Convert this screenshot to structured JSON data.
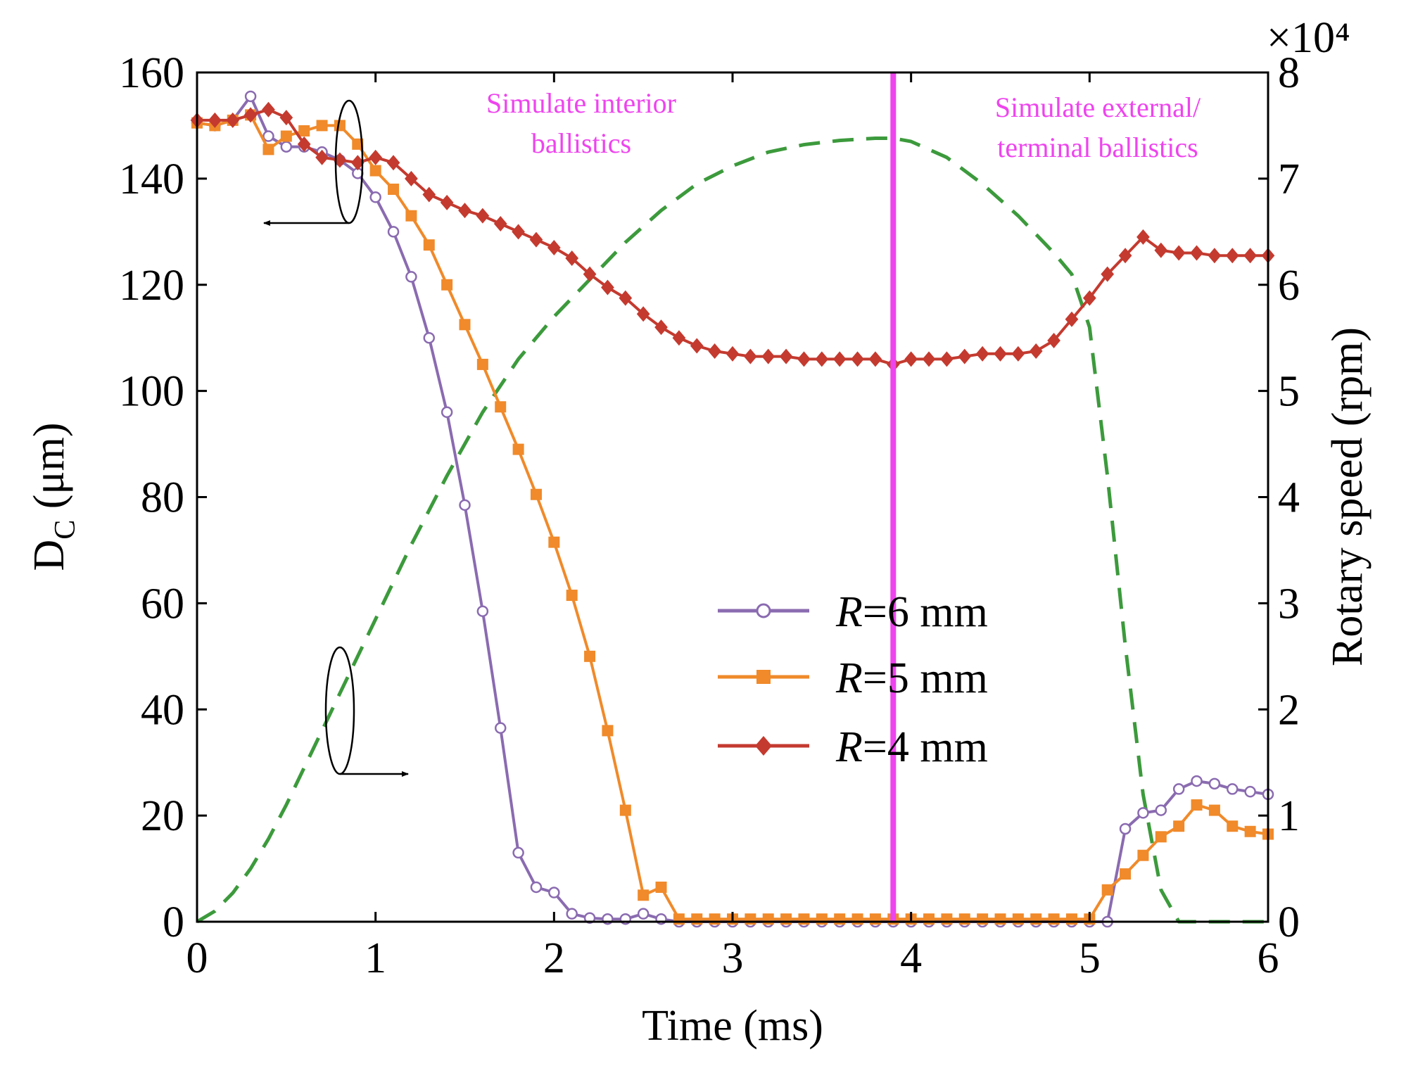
{
  "chart_data": {
    "type": "line",
    "xlabel": "Time (ms)",
    "ylabel": "D",
    "ylabel_sub": "C",
    "ylabel_unit": " (μm)",
    "y2label": "Rotary speed (rpm)",
    "y2_multiplier": "×10⁴",
    "xlim": [
      0,
      6
    ],
    "ylim": [
      0,
      160
    ],
    "y2lim": [
      0,
      8
    ],
    "x_ticks": [
      "0",
      "1",
      "2",
      "3",
      "4",
      "5",
      "6"
    ],
    "y_ticks": [
      "0",
      "20",
      "40",
      "60",
      "80",
      "100",
      "120",
      "140",
      "160"
    ],
    "y2_ticks": [
      "0",
      "1",
      "2",
      "3",
      "4",
      "5",
      "6",
      "7",
      "8"
    ],
    "vline": {
      "x": 3.9,
      "color": "#ee44ee"
    },
    "annotations": {
      "interior_line1": "Simulate interior",
      "interior_line2": "ballistics",
      "external_line1": "Simulate external/",
      "external_line2": "terminal ballistics"
    },
    "series": [
      {
        "name": "R=6 mm",
        "label_italic": "R",
        "label_rest": "=6 mm",
        "color": "#8a6bb0",
        "marker": "circle",
        "x": [
          0,
          0.1,
          0.2,
          0.3,
          0.4,
          0.5,
          0.6,
          0.7,
          0.8,
          0.9,
          1.0,
          1.1,
          1.2,
          1.3,
          1.4,
          1.5,
          1.6,
          1.7,
          1.8,
          1.9,
          2.0,
          2.1,
          2.2,
          2.3,
          2.4,
          2.5,
          2.6,
          2.7,
          2.8,
          2.9,
          3.0,
          3.1,
          3.2,
          3.3,
          3.4,
          3.5,
          3.6,
          3.7,
          3.8,
          3.9,
          4.0,
          4.1,
          4.2,
          4.3,
          4.4,
          4.5,
          4.6,
          4.7,
          4.8,
          4.9,
          5.0,
          5.1,
          5.2,
          5.3,
          5.4,
          5.5,
          5.6,
          5.7,
          5.8,
          5.9,
          6.0
        ],
        "values": [
          150.5,
          150,
          151,
          155.5,
          148,
          146,
          146,
          145,
          143.5,
          141,
          136.5,
          130,
          121.5,
          110,
          96,
          78.5,
          58.5,
          36.5,
          13,
          6.5,
          5.5,
          1.5,
          0.7,
          0.5,
          0.5,
          1.5,
          0.5,
          0,
          0,
          0,
          0,
          0,
          0,
          0,
          0,
          0,
          0,
          0,
          0,
          0,
          0,
          0,
          0,
          0,
          0,
          0,
          0,
          0,
          0,
          0,
          0,
          0,
          17.5,
          20.5,
          21,
          25,
          26.5,
          26,
          25,
          24.5,
          24
        ]
      },
      {
        "name": "R=5 mm",
        "label_italic": "R",
        "label_rest": "=5 mm",
        "color": "#f08a2a",
        "marker": "square",
        "x": [
          0,
          0.1,
          0.2,
          0.3,
          0.4,
          0.5,
          0.6,
          0.7,
          0.8,
          0.9,
          1.0,
          1.1,
          1.2,
          1.3,
          1.4,
          1.5,
          1.6,
          1.7,
          1.8,
          1.9,
          2.0,
          2.1,
          2.2,
          2.3,
          2.4,
          2.5,
          2.6,
          2.7,
          2.8,
          2.9,
          3.0,
          3.1,
          3.2,
          3.3,
          3.4,
          3.5,
          3.6,
          3.7,
          3.8,
          3.9,
          4.0,
          4.1,
          4.2,
          4.3,
          4.4,
          4.5,
          4.6,
          4.7,
          4.8,
          4.9,
          5.0,
          5.1,
          5.2,
          5.3,
          5.4,
          5.5,
          5.6,
          5.7,
          5.8,
          5.9,
          6.0
        ],
        "values": [
          150.5,
          150,
          151,
          152,
          145.5,
          148,
          149,
          150,
          150,
          146.5,
          141.5,
          138,
          133,
          127.5,
          120,
          112.5,
          105,
          97,
          89,
          80.5,
          71.5,
          61.5,
          50,
          36,
          21,
          5,
          6.5,
          0.5,
          0.5,
          0.5,
          0.5,
          0.5,
          0.5,
          0.5,
          0.5,
          0.5,
          0.5,
          0.5,
          0.5,
          0.5,
          0.5,
          0.5,
          0.5,
          0.5,
          0.5,
          0.5,
          0.5,
          0.5,
          0.5,
          0.5,
          0.5,
          6,
          9,
          12.5,
          16,
          18,
          22,
          21,
          18,
          17,
          16.5
        ]
      },
      {
        "name": "R=4 mm",
        "label_italic": "R",
        "label_rest": "=4 mm",
        "color": "#c43a2f",
        "marker": "diamond",
        "x": [
          0,
          0.1,
          0.2,
          0.3,
          0.4,
          0.5,
          0.6,
          0.7,
          0.8,
          0.9,
          1.0,
          1.1,
          1.2,
          1.3,
          1.4,
          1.5,
          1.6,
          1.7,
          1.8,
          1.9,
          2.0,
          2.1,
          2.2,
          2.3,
          2.4,
          2.5,
          2.6,
          2.7,
          2.8,
          2.9,
          3.0,
          3.1,
          3.2,
          3.3,
          3.4,
          3.5,
          3.6,
          3.7,
          3.8,
          3.9,
          4.0,
          4.1,
          4.2,
          4.3,
          4.4,
          4.5,
          4.6,
          4.7,
          4.8,
          4.9,
          5.0,
          5.1,
          5.2,
          5.3,
          5.4,
          5.5,
          5.6,
          5.7,
          5.8,
          5.9,
          6.0
        ],
        "values": [
          151,
          151,
          151,
          152,
          153,
          151.5,
          146.5,
          144,
          143.5,
          143,
          144,
          143,
          140,
          137,
          135.5,
          134,
          133,
          131.5,
          130,
          128.5,
          127,
          125,
          122,
          119.5,
          117.5,
          114.5,
          112,
          110,
          108.5,
          107.5,
          107,
          106.5,
          106.5,
          106.5,
          106,
          106,
          106,
          106,
          106,
          105,
          106,
          106,
          106,
          106.5,
          107,
          107,
          107,
          107.5,
          109.5,
          113.5,
          117.5,
          122,
          125.5,
          129,
          126.5,
          126,
          126,
          125.5,
          125.5,
          125.5,
          125.5
        ]
      },
      {
        "name": "Rotary speed",
        "axis": "right",
        "style": "dashed",
        "color": "#3c9a3c",
        "x": [
          0,
          0.1,
          0.2,
          0.3,
          0.4,
          0.5,
          0.6,
          0.7,
          0.8,
          0.9,
          1.0,
          1.2,
          1.4,
          1.6,
          1.8,
          2.0,
          2.2,
          2.4,
          2.6,
          2.8,
          3.0,
          3.2,
          3.4,
          3.6,
          3.8,
          3.9,
          4.0,
          4.2,
          4.4,
          4.6,
          4.8,
          4.9,
          5.0,
          5.1,
          5.2,
          5.3,
          5.4,
          5.5,
          5.6,
          5.7,
          5.8,
          5.9,
          6.0
        ],
        "values": [
          0,
          0.1,
          0.27,
          0.5,
          0.78,
          1.1,
          1.45,
          1.8,
          2.15,
          2.5,
          2.85,
          3.55,
          4.2,
          4.8,
          5.3,
          5.7,
          6.05,
          6.4,
          6.7,
          6.95,
          7.12,
          7.25,
          7.32,
          7.36,
          7.38,
          7.38,
          7.35,
          7.2,
          6.95,
          6.65,
          6.3,
          6.1,
          5.6,
          4.2,
          2.6,
          1.2,
          0.3,
          0,
          0,
          0,
          0,
          0,
          0
        ]
      }
    ]
  }
}
